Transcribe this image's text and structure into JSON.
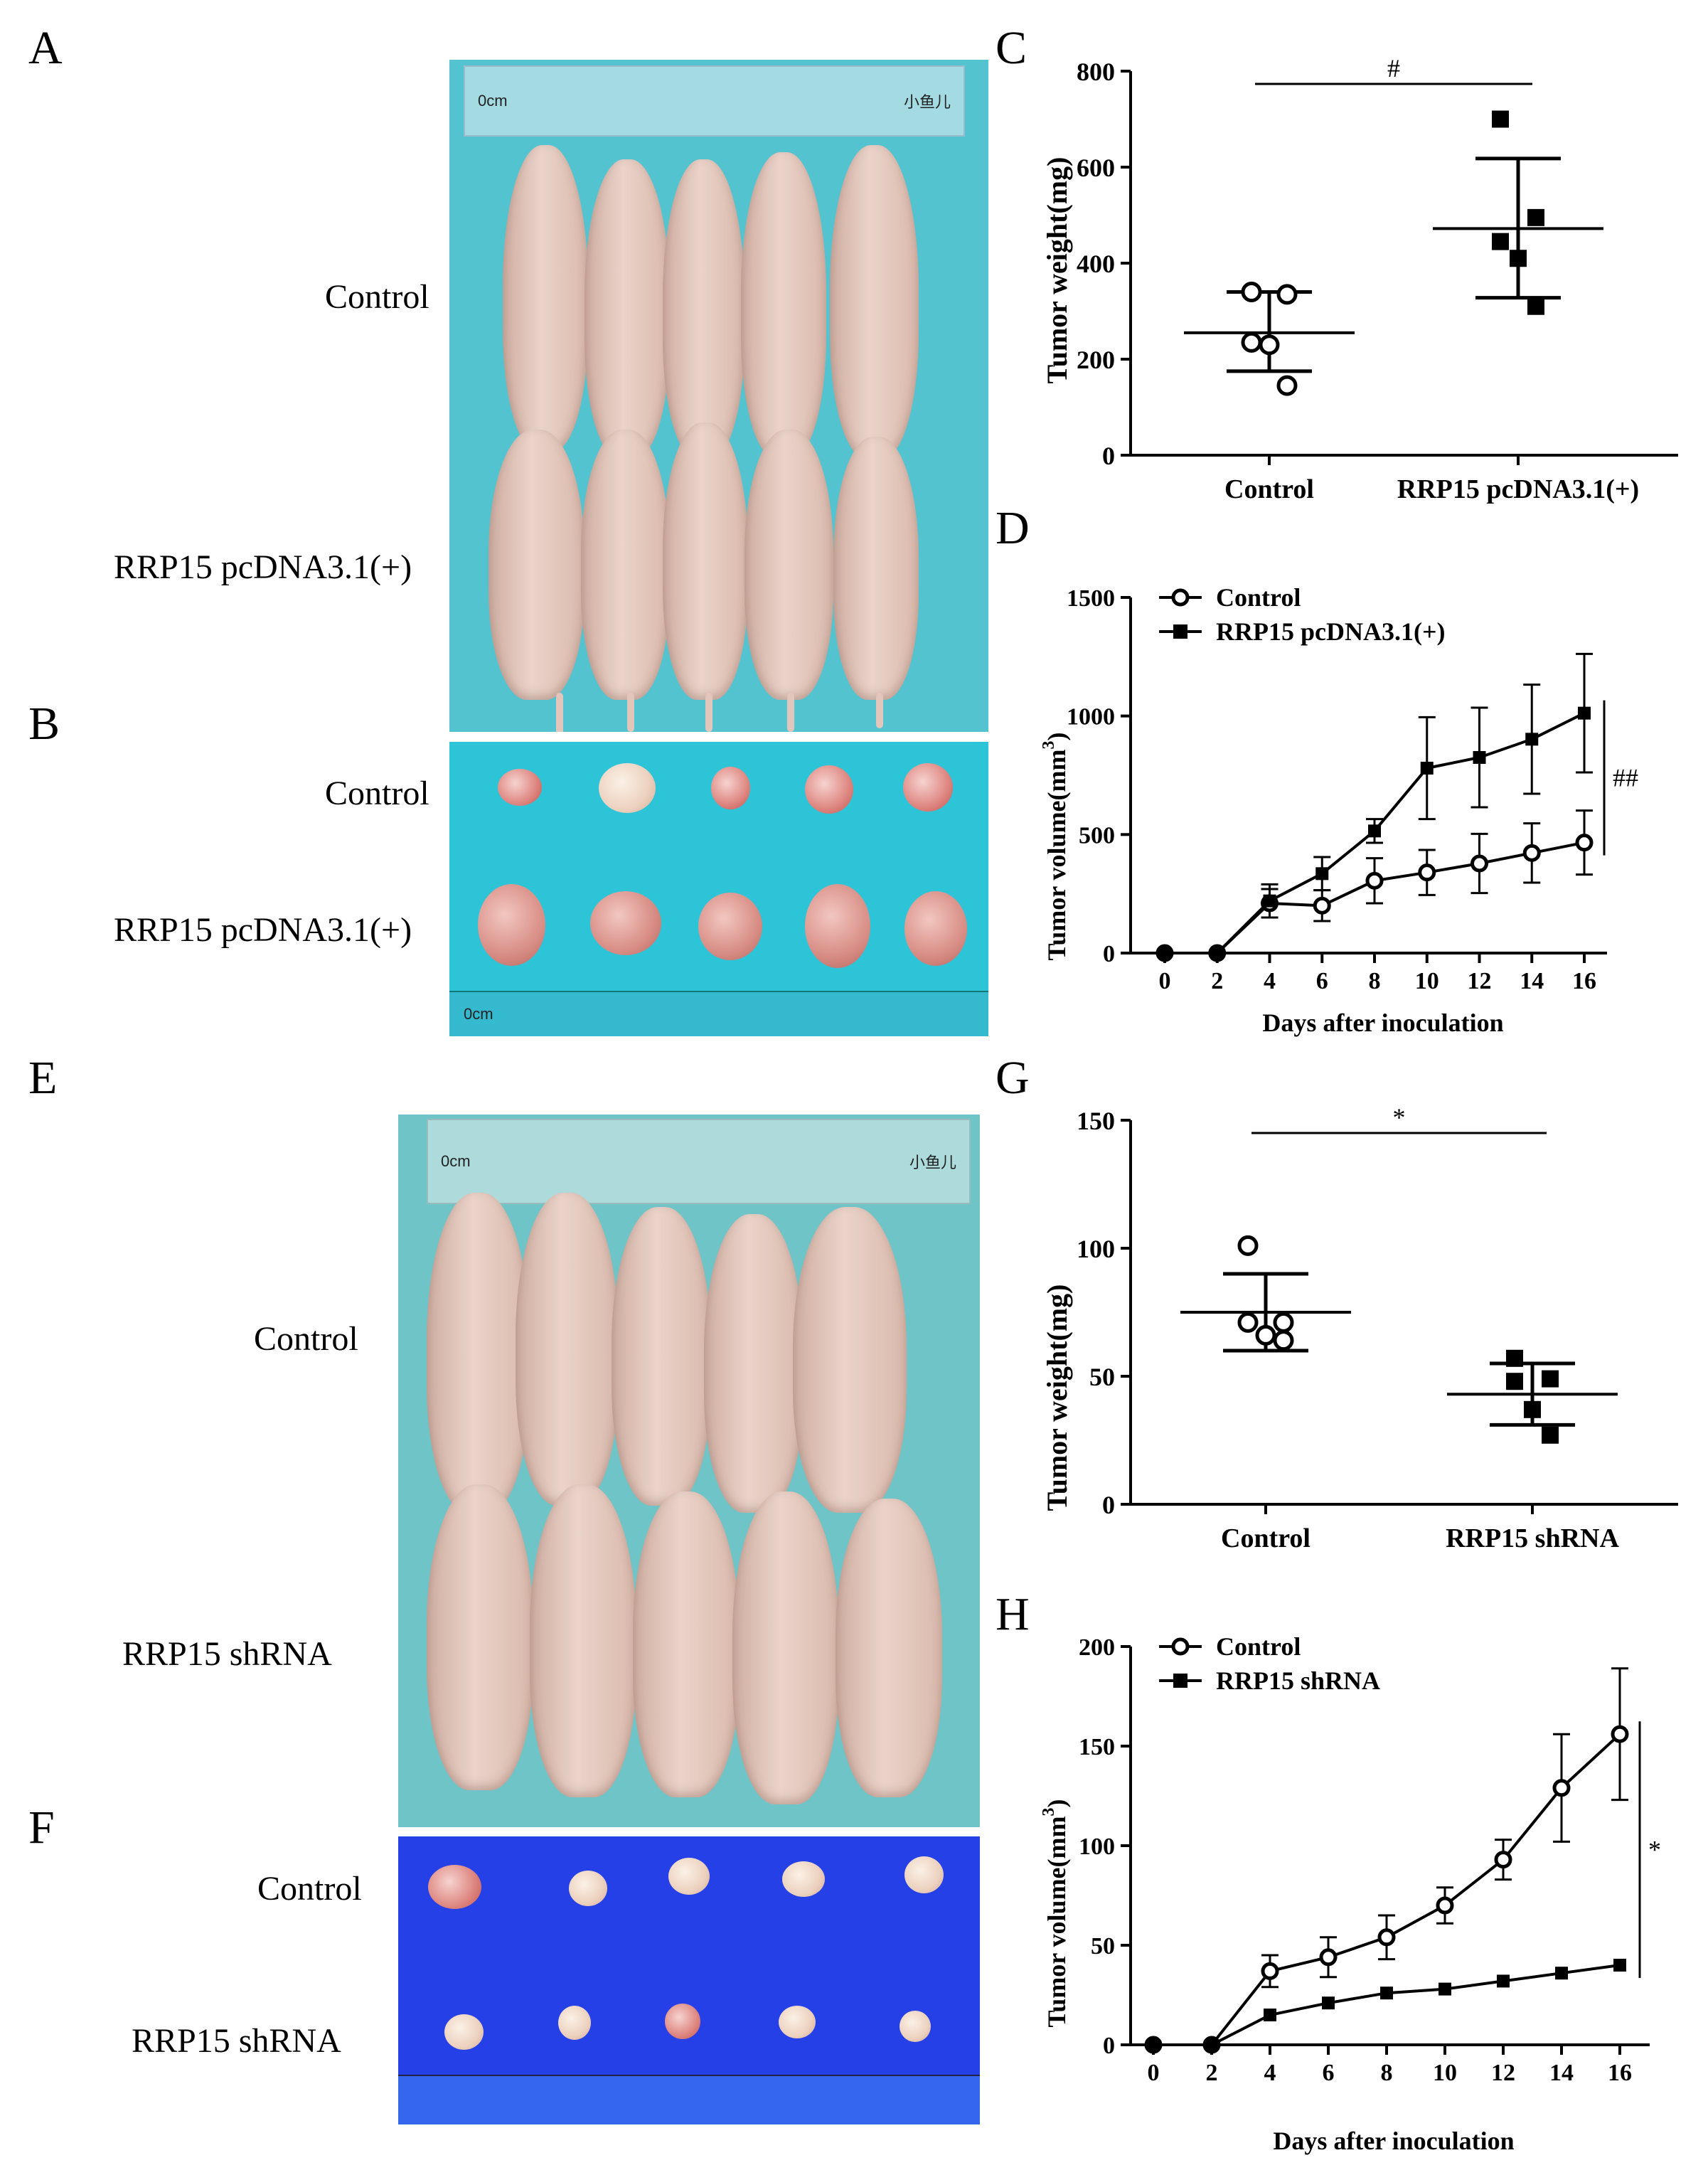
{
  "panel_letters": {
    "a": "A",
    "b": "B",
    "c": "C",
    "d": "D",
    "e": "E",
    "f": "F",
    "g": "G",
    "h": "H"
  },
  "row_labels": {
    "a_control": "Control",
    "a_rrp15": "RRP15 pcDNA3.1(+)",
    "b_control": "Control",
    "b_rrp15": "RRP15 pcDNA3.1(+)",
    "e_control": "Control",
    "e_rrp15": "RRP15 shRNA",
    "f_control": "Control",
    "f_rrp15": "RRP15 shRNA"
  },
  "ruler_text": {
    "top_a": "小鱼儿",
    "top_e": "小鱼儿",
    "cm": "0cm"
  },
  "colors": {
    "series_line": "#000000",
    "photo_teal": "#53c4cf",
    "photo_blue": "#2440e6"
  },
  "chart_data": [
    {
      "id": "C",
      "type": "scatter",
      "ylabel": "Tumor weight(mg)",
      "categories": [
        "Control",
        "RRP15 pcDNA3.1(+)"
      ],
      "ylim": [
        0,
        800
      ],
      "yticks": [
        "0",
        "200",
        "400",
        "600",
        "800"
      ],
      "series": [
        {
          "name": "Control",
          "marker": "open-circle",
          "values": [
            340,
            335,
            235,
            230,
            145
          ],
          "mean": 255,
          "sd_low": 175,
          "sd_high": 340
        },
        {
          "name": "RRP15 pcDNA3.1(+)",
          "marker": "filled-square",
          "values": [
            700,
            495,
            445,
            410,
            310
          ],
          "mean": 472,
          "sd_low": 328,
          "sd_high": 618
        }
      ],
      "significance": "#"
    },
    {
      "id": "D",
      "type": "line",
      "xlabel": "Days after inoculation",
      "ylabel": "Tumor volume(mm",
      "ylabel_sup": "3",
      "ylabel_end": ")",
      "x": [
        0,
        2,
        4,
        6,
        8,
        10,
        12,
        14,
        16
      ],
      "xticks": [
        "0",
        "2",
        "4",
        "6",
        "8",
        "10",
        "12",
        "14",
        "16"
      ],
      "ylim": [
        0,
        1500
      ],
      "yticks": [
        "0",
        "500",
        "1000",
        "1500"
      ],
      "series": [
        {
          "name": "Control",
          "marker": "open-circle",
          "values": [
            0,
            0,
            210,
            200,
            305,
            340,
            378,
            422,
            466
          ],
          "errors": [
            0,
            0,
            60,
            65,
            95,
            95,
            125,
            125,
            135
          ]
        },
        {
          "name": "RRP15 pcDNA3.1(+)",
          "marker": "filled-square",
          "values": [
            0,
            0,
            220,
            335,
            515,
            780,
            825,
            902,
            1012
          ],
          "errors": [
            0,
            0,
            70,
            70,
            50,
            215,
            210,
            230,
            250
          ]
        }
      ],
      "significance": "##"
    },
    {
      "id": "G",
      "type": "scatter",
      "ylabel": "Tumor weight(mg)",
      "categories": [
        "Control",
        "RRP15 shRNA"
      ],
      "ylim": [
        0,
        150
      ],
      "yticks": [
        "0",
        "50",
        "100",
        "150"
      ],
      "series": [
        {
          "name": "Control",
          "marker": "open-circle",
          "values": [
            101,
            71,
            71,
            66,
            64
          ],
          "mean": 75,
          "sd_low": 60,
          "sd_high": 90
        },
        {
          "name": "RRP15 shRNA",
          "marker": "filled-square",
          "values": [
            57,
            49,
            48,
            37,
            27
          ],
          "mean": 43,
          "sd_low": 31,
          "sd_high": 55
        }
      ],
      "significance": "*"
    },
    {
      "id": "H",
      "type": "line",
      "xlabel": "Days after inoculation",
      "ylabel": "Tumor volume(mm",
      "ylabel_sup": "3",
      "ylabel_end": ")",
      "x": [
        0,
        2,
        4,
        6,
        8,
        10,
        12,
        14,
        16
      ],
      "xticks": [
        "0",
        "2",
        "4",
        "6",
        "8",
        "10",
        "12",
        "14",
        "16"
      ],
      "ylim": [
        0,
        200
      ],
      "yticks": [
        "0",
        "50",
        "100",
        "150",
        "200"
      ],
      "series": [
        {
          "name": "Control",
          "marker": "open-circle",
          "values": [
            0,
            0,
            37,
            44,
            54,
            70,
            93,
            129,
            156
          ],
          "errors": [
            0,
            0,
            8,
            10,
            11,
            9,
            10,
            27,
            33
          ]
        },
        {
          "name": "RRP15 shRNA",
          "marker": "filled-square",
          "values": [
            0,
            0,
            15,
            21,
            26,
            28,
            32,
            36,
            40
          ],
          "errors": [
            0,
            0,
            0,
            0,
            0,
            0,
            0,
            0,
            0
          ]
        }
      ],
      "significance": "*"
    }
  ]
}
